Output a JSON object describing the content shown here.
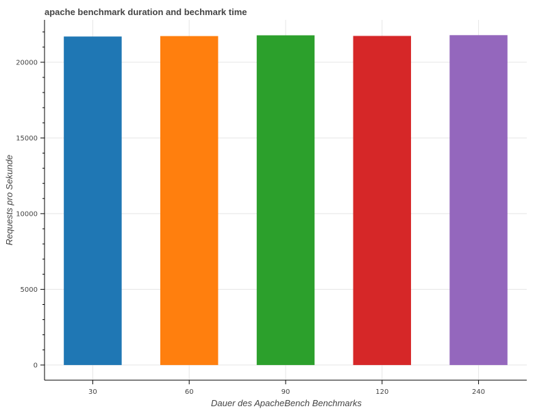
{
  "chart_data": {
    "type": "bar",
    "title": "apache benchmark duration and bechmark time",
    "xlabel": "Dauer des ApacheBench Benchmarks",
    "ylabel": "Requests pro Sekunde",
    "categories": [
      "30",
      "60",
      "90",
      "120",
      "240"
    ],
    "values": [
      21700,
      21730,
      21780,
      21740,
      21790
    ],
    "colors": [
      "#1f77b4",
      "#ff7f0e",
      "#2ca02c",
      "#d62728",
      "#9467bd"
    ],
    "ylim": [
      -1000,
      22800
    ],
    "yticks": [
      0,
      5000,
      10000,
      15000,
      20000
    ],
    "grid": true,
    "legend": "none"
  }
}
